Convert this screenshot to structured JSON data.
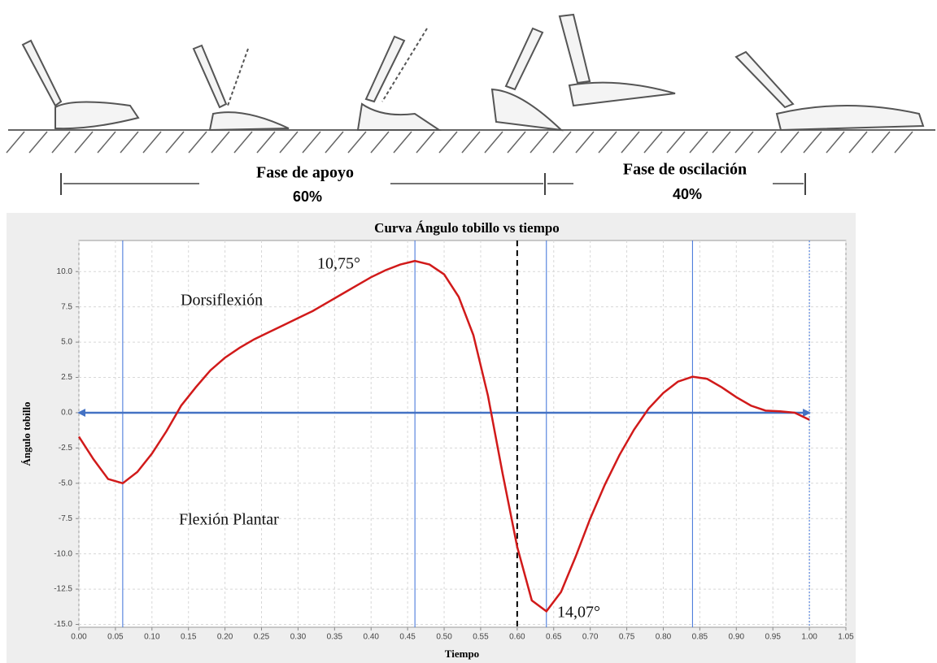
{
  "gait_phases": {
    "stance": {
      "title": "Fase de apoyo",
      "percent": "60%"
    },
    "swing": {
      "title": "Fase de oscilación",
      "percent": "40%"
    }
  },
  "chart_data": {
    "type": "line",
    "title": "Curva Ángulo tobillo vs tiempo",
    "x_label": "Tiempo",
    "y_label": "Ángulo tobillo",
    "x": [
      0.0,
      0.02,
      0.04,
      0.06,
      0.08,
      0.1,
      0.12,
      0.14,
      0.16,
      0.18,
      0.2,
      0.22,
      0.24,
      0.26,
      0.28,
      0.3,
      0.32,
      0.34,
      0.36,
      0.38,
      0.4,
      0.42,
      0.44,
      0.46,
      0.48,
      0.5,
      0.52,
      0.54,
      0.56,
      0.58,
      0.6,
      0.62,
      0.64,
      0.66,
      0.68,
      0.7,
      0.72,
      0.74,
      0.76,
      0.78,
      0.8,
      0.82,
      0.84,
      0.86,
      0.88,
      0.9,
      0.92,
      0.94,
      0.96,
      0.98,
      1.0
    ],
    "series": [
      {
        "name": "Ángulo tobillo",
        "color": "#d11a1a",
        "values": [
          -1.7,
          -3.3,
          -4.7,
          -5.0,
          -4.2,
          -2.9,
          -1.3,
          0.5,
          1.8,
          3.0,
          3.9,
          4.6,
          5.2,
          5.7,
          6.2,
          6.7,
          7.2,
          7.8,
          8.4,
          9.0,
          9.6,
          10.1,
          10.5,
          10.75,
          10.5,
          9.8,
          8.2,
          5.5,
          1.2,
          -4.3,
          -9.5,
          -13.3,
          -14.07,
          -12.7,
          -10.2,
          -7.5,
          -5.1,
          -3.0,
          -1.2,
          0.3,
          1.4,
          2.2,
          2.55,
          2.4,
          1.8,
          1.1,
          0.5,
          0.15,
          0.1,
          0.0,
          -0.5
        ]
      }
    ],
    "xlim": [
      0,
      1.05
    ],
    "ylim": [
      -15.2,
      12.2
    ],
    "xticks": [
      {
        "value": 0,
        "label": "0.00"
      },
      {
        "value": 0.05,
        "label": "0.05"
      },
      {
        "value": 0.1,
        "label": "0.10"
      },
      {
        "value": 0.15,
        "label": "0.15"
      },
      {
        "value": 0.2,
        "label": "0.20"
      },
      {
        "value": 0.25,
        "label": "0.25"
      },
      {
        "value": 0.3,
        "label": "0.30"
      },
      {
        "value": 0.35,
        "label": "0.35"
      },
      {
        "value": 0.4,
        "label": "0.40"
      },
      {
        "value": 0.45,
        "label": "0.45"
      },
      {
        "value": 0.5,
        "label": "0.50"
      },
      {
        "value": 0.55,
        "label": "0.55"
      },
      {
        "value": 0.6,
        "label": "0.60"
      },
      {
        "value": 0.65,
        "label": "0.65"
      },
      {
        "value": 0.7,
        "label": "0.70"
      },
      {
        "value": 0.75,
        "label": "0.75"
      },
      {
        "value": 0.8,
        "label": "0.80"
      },
      {
        "value": 0.85,
        "label": "0.85"
      },
      {
        "value": 0.9,
        "label": "0.90"
      },
      {
        "value": 0.95,
        "label": "0.95"
      },
      {
        "value": 1,
        "label": "1.00"
      },
      {
        "value": 1.05,
        "label": "1.05"
      }
    ],
    "yticks": [
      {
        "value": 10,
        "label": "10.0"
      },
      7.5,
      {
        "value": 5,
        "label": "5.0"
      },
      2.5,
      {
        "value": 0,
        "label": "0.0"
      },
      -2.5,
      {
        "value": -5,
        "label": "-5.0"
      },
      -7.5,
      {
        "value": -10,
        "label": "-10.0"
      },
      -12.5,
      {
        "value": -15,
        "label": "-15.0"
      }
    ],
    "grid": true,
    "vlines": [
      0.06,
      0.46,
      0.64,
      0.84,
      1.0
    ],
    "vline_color": "#3a6fd8",
    "phase_divider": 0.6,
    "zero_arrow_color": "#4472c4",
    "annotations": [
      "10,75°",
      "Dorsiflexión",
      "Flexión Plantar",
      "14,07°"
    ]
  }
}
